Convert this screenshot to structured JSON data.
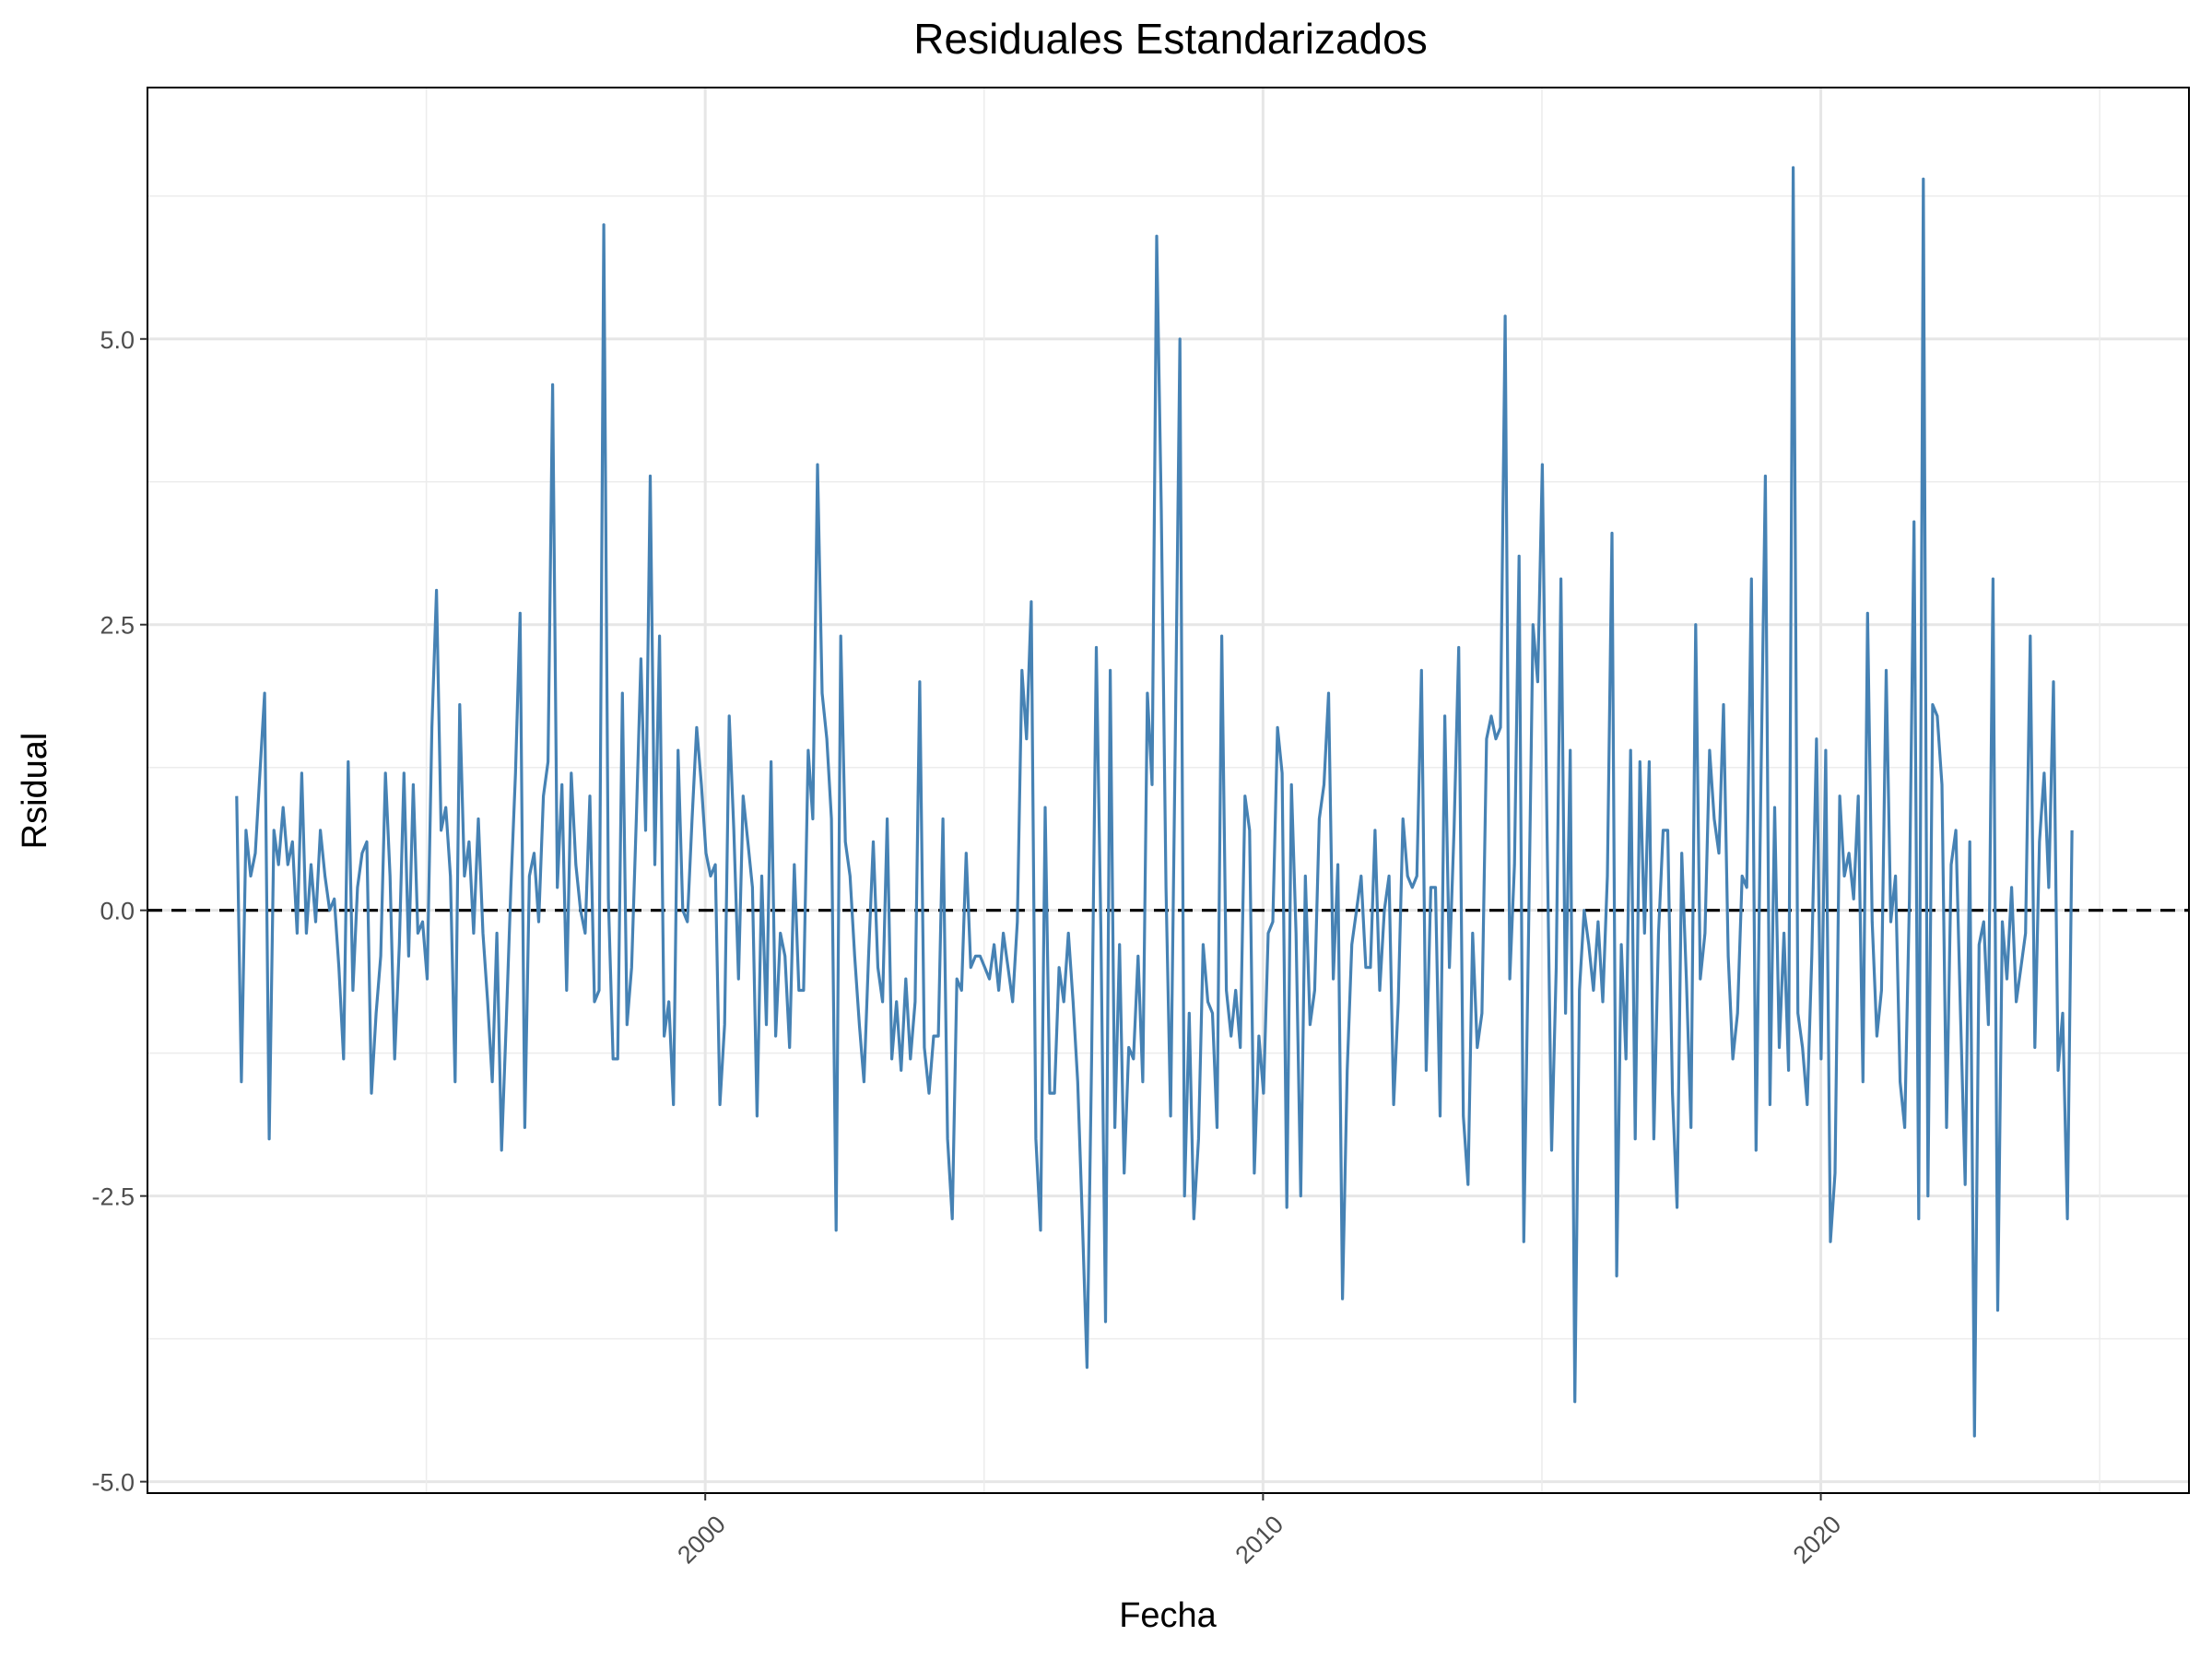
{
  "chart_data": {
    "type": "line",
    "title": "Residuales Estandarizados",
    "xlabel": "Fecha",
    "ylabel": "Rsidual",
    "x_ticks": [
      "2000",
      "2010",
      "2020"
    ],
    "x_tick_values": [
      2000,
      2010,
      2020
    ],
    "y_ticks": [
      "-5.0",
      "-2.5",
      "0.0",
      "2.5",
      "5.0"
    ],
    "y_tick_values": [
      -5,
      -2.5,
      0,
      2.5,
      5
    ],
    "xlim": [
      1990,
      2026.6
    ],
    "ylim": [
      -5.1,
      7.2
    ],
    "grid": true,
    "reference_line": {
      "y": 0,
      "style": "dashed",
      "color": "#000000"
    },
    "line_color": "#4682B4",
    "series": [
      {
        "x_start": 1991.6,
        "x_step": 0.0833,
        "values": [
          1.0,
          -1.5,
          0.7,
          0.3,
          0.5,
          1.2,
          1.9,
          -2.0,
          0.7,
          0.4,
          0.9,
          0.4,
          0.6,
          -0.2,
          1.2,
          -0.2,
          0.4,
          -0.1,
          0.7,
          0.3,
          0.0,
          0.1,
          -0.5,
          -1.3,
          1.3,
          -0.7,
          0.2,
          0.5,
          0.6,
          -1.6,
          -0.9,
          -0.4,
          1.2,
          0.3,
          -1.3,
          -0.3,
          1.2,
          -0.4,
          1.1,
          -0.2,
          -0.1,
          -0.6,
          1.6,
          2.8,
          0.7,
          0.9,
          0.3,
          -1.5,
          1.8,
          0.3,
          0.6,
          -0.2,
          0.8,
          -0.2,
          -0.8,
          -1.5,
          -0.2,
          -2.1,
          -1.0,
          0.2,
          1.2,
          2.6,
          -1.9,
          0.3,
          0.5,
          -0.1,
          1.0,
          1.3,
          4.6,
          0.2,
          1.1,
          -0.7,
          1.2,
          0.4,
          0.0,
          -0.2,
          1.0,
          -0.8,
          -0.7,
          6.0,
          0.1,
          -1.3,
          -1.3,
          1.9,
          -1.0,
          -0.5,
          0.8,
          2.2,
          0.7,
          3.8,
          0.4,
          2.4,
          -1.1,
          -0.8,
          -1.7,
          1.4,
          0.0,
          -0.1,
          0.8,
          1.6,
          1.1,
          0.5,
          0.3,
          0.4,
          -1.7,
          -1.0,
          1.7,
          0.7,
          -0.6,
          1.0,
          0.6,
          0.2,
          -1.8,
          0.3,
          -1.0,
          1.3,
          -1.1,
          -0.2,
          -0.4,
          -1.2,
          0.4,
          -0.7,
          -0.7,
          1.4,
          0.8,
          3.9,
          1.9,
          1.5,
          0.8,
          -2.8,
          2.4,
          0.6,
          0.3,
          -0.4,
          -1.0,
          -1.5,
          -0.4,
          0.6,
          -0.5,
          -0.8,
          0.8,
          -1.3,
          -0.8,
          -1.4,
          -0.6,
          -1.3,
          -0.8,
          2.0,
          -1.2,
          -1.6,
          -1.1,
          -1.1,
          0.8,
          -2.0,
          -2.7,
          -0.6,
          -0.7,
          0.5,
          -0.5,
          -0.4,
          -0.4,
          -0.5,
          -0.6,
          -0.3,
          -0.7,
          -0.2,
          -0.5,
          -0.8,
          -0.1,
          2.1,
          1.5,
          2.7,
          -2.0,
          -2.8,
          0.9,
          -1.6,
          -1.6,
          -0.5,
          -0.8,
          -0.2,
          -0.8,
          -1.5,
          -2.7,
          -4.0,
          -1.3,
          2.3,
          -0.2,
          -3.6,
          2.1,
          -1.9,
          -0.3,
          -2.3,
          -1.2,
          -1.3,
          -0.4,
          -1.5,
          1.9,
          1.1,
          5.9,
          3.5,
          0.2,
          -1.8,
          1.5,
          5.0,
          -2.5,
          -0.9,
          -2.7,
          -2.0,
          -0.3,
          -0.8,
          -0.9,
          -1.9,
          2.4,
          -0.7,
          -1.1,
          -0.7,
          -1.2,
          1.0,
          0.7,
          -2.3,
          -1.1,
          -1.6,
          -0.2,
          -0.1,
          1.6,
          1.2,
          -2.6,
          1.1,
          -0.2,
          -2.5,
          0.3,
          -1.0,
          -0.7,
          0.8,
          1.1,
          1.9,
          -0.6,
          0.4,
          -3.4,
          -1.4,
          -0.3,
          0.0,
          0.3,
          -0.5,
          -0.5,
          0.7,
          -0.7,
          0.0,
          0.3,
          -1.7,
          -0.8,
          0.8,
          0.3,
          0.2,
          0.3,
          2.1,
          -1.4,
          0.2,
          0.2,
          -1.8,
          1.7,
          -0.5,
          0.7,
          2.3,
          -1.8,
          -2.4,
          -0.2,
          -1.2,
          -0.9,
          1.5,
          1.7,
          1.5,
          1.6,
          5.2,
          -0.6,
          0.4,
          3.1,
          -2.9,
          -0.3,
          2.5,
          2.0,
          3.9,
          0.7,
          -2.1,
          -0.5,
          2.9,
          -0.9,
          1.4,
          -4.3,
          -0.7,
          0.0,
          -0.3,
          -0.7,
          -0.1,
          -0.8,
          0.3,
          3.3,
          -3.2,
          -0.3,
          -1.3,
          1.4,
          -2.0,
          1.3,
          -0.2,
          1.3,
          -2.0,
          -0.2,
          0.7,
          0.7,
          -1.6,
          -2.6,
          0.5,
          -0.6,
          -1.9,
          2.5,
          -0.6,
          -0.2,
          1.4,
          0.8,
          0.5,
          1.8,
          -0.4,
          -1.3,
          -0.9,
          0.3,
          0.2,
          2.9,
          -2.1,
          1.0,
          3.8,
          -1.7,
          0.9,
          -1.2,
          -0.2,
          -1.4,
          6.5,
          -0.9,
          -1.2,
          -1.7,
          -0.4,
          1.5,
          -1.3,
          1.4,
          -2.9,
          -2.3,
          1.0,
          0.3,
          0.5,
          0.1,
          1.0,
          -1.5,
          2.6,
          -0.1,
          -1.1,
          -0.7,
          2.1,
          -0.1,
          0.3,
          -1.5,
          -1.9,
          0.1,
          3.4,
          -2.7,
          6.4,
          -2.5,
          1.8,
          1.7,
          1.1,
          -1.9,
          0.4,
          0.7,
          -0.9,
          -2.4,
          0.6,
          -4.6,
          -0.3,
          -0.1,
          -1.0,
          2.9,
          -3.5,
          -0.1,
          -0.6,
          0.2,
          -0.8,
          -0.5,
          -0.2,
          2.4,
          -1.2,
          0.6,
          1.2,
          0.2,
          2.0,
          -1.4,
          -0.9,
          -2.7,
          0.7
        ]
      }
    ]
  }
}
